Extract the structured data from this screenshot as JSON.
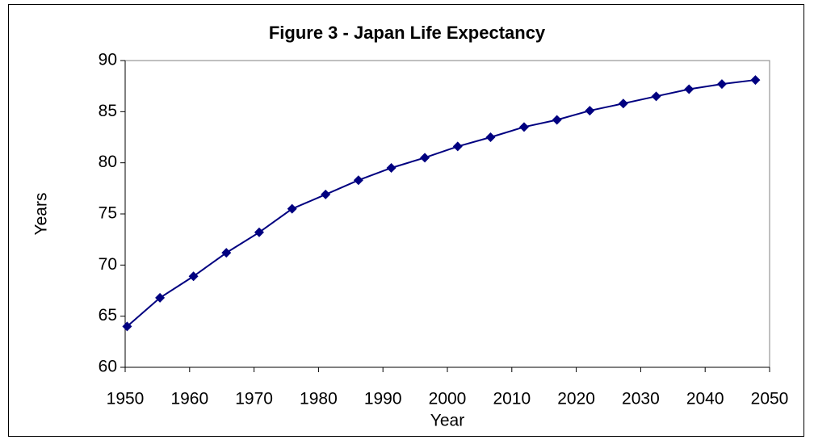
{
  "chart_data": {
    "type": "line",
    "title": "Figure 3 - Japan Life Expectancy",
    "x_label": "Year",
    "y_label": "Years",
    "x": [
      1950.3,
      1955.4,
      1960.6,
      1965.7,
      1970.8,
      1975.9,
      1981.1,
      1986.2,
      1991.3,
      1996.5,
      2001.6,
      2006.7,
      2011.9,
      2017.0,
      2022.1,
      2027.3,
      2032.4,
      2037.5,
      2042.6,
      2047.8
    ],
    "series": [
      {
        "name": "Japan",
        "color": "#000080",
        "values": [
          64.0,
          66.8,
          68.9,
          71.2,
          73.2,
          75.5,
          76.9,
          78.3,
          79.5,
          80.5,
          81.6,
          82.5,
          83.5,
          84.2,
          85.1,
          85.8,
          86.5,
          87.2,
          87.7,
          88.1
        ]
      }
    ],
    "xlim": [
      1950,
      2050
    ],
    "xticks": [
      1950,
      1960,
      1970,
      1980,
      1990,
      2000,
      2010,
      2020,
      2030,
      2040,
      2050
    ],
    "ylim": [
      60,
      90
    ],
    "yticks": [
      60,
      65,
      70,
      75,
      80,
      85,
      90
    ],
    "grid": false
  }
}
